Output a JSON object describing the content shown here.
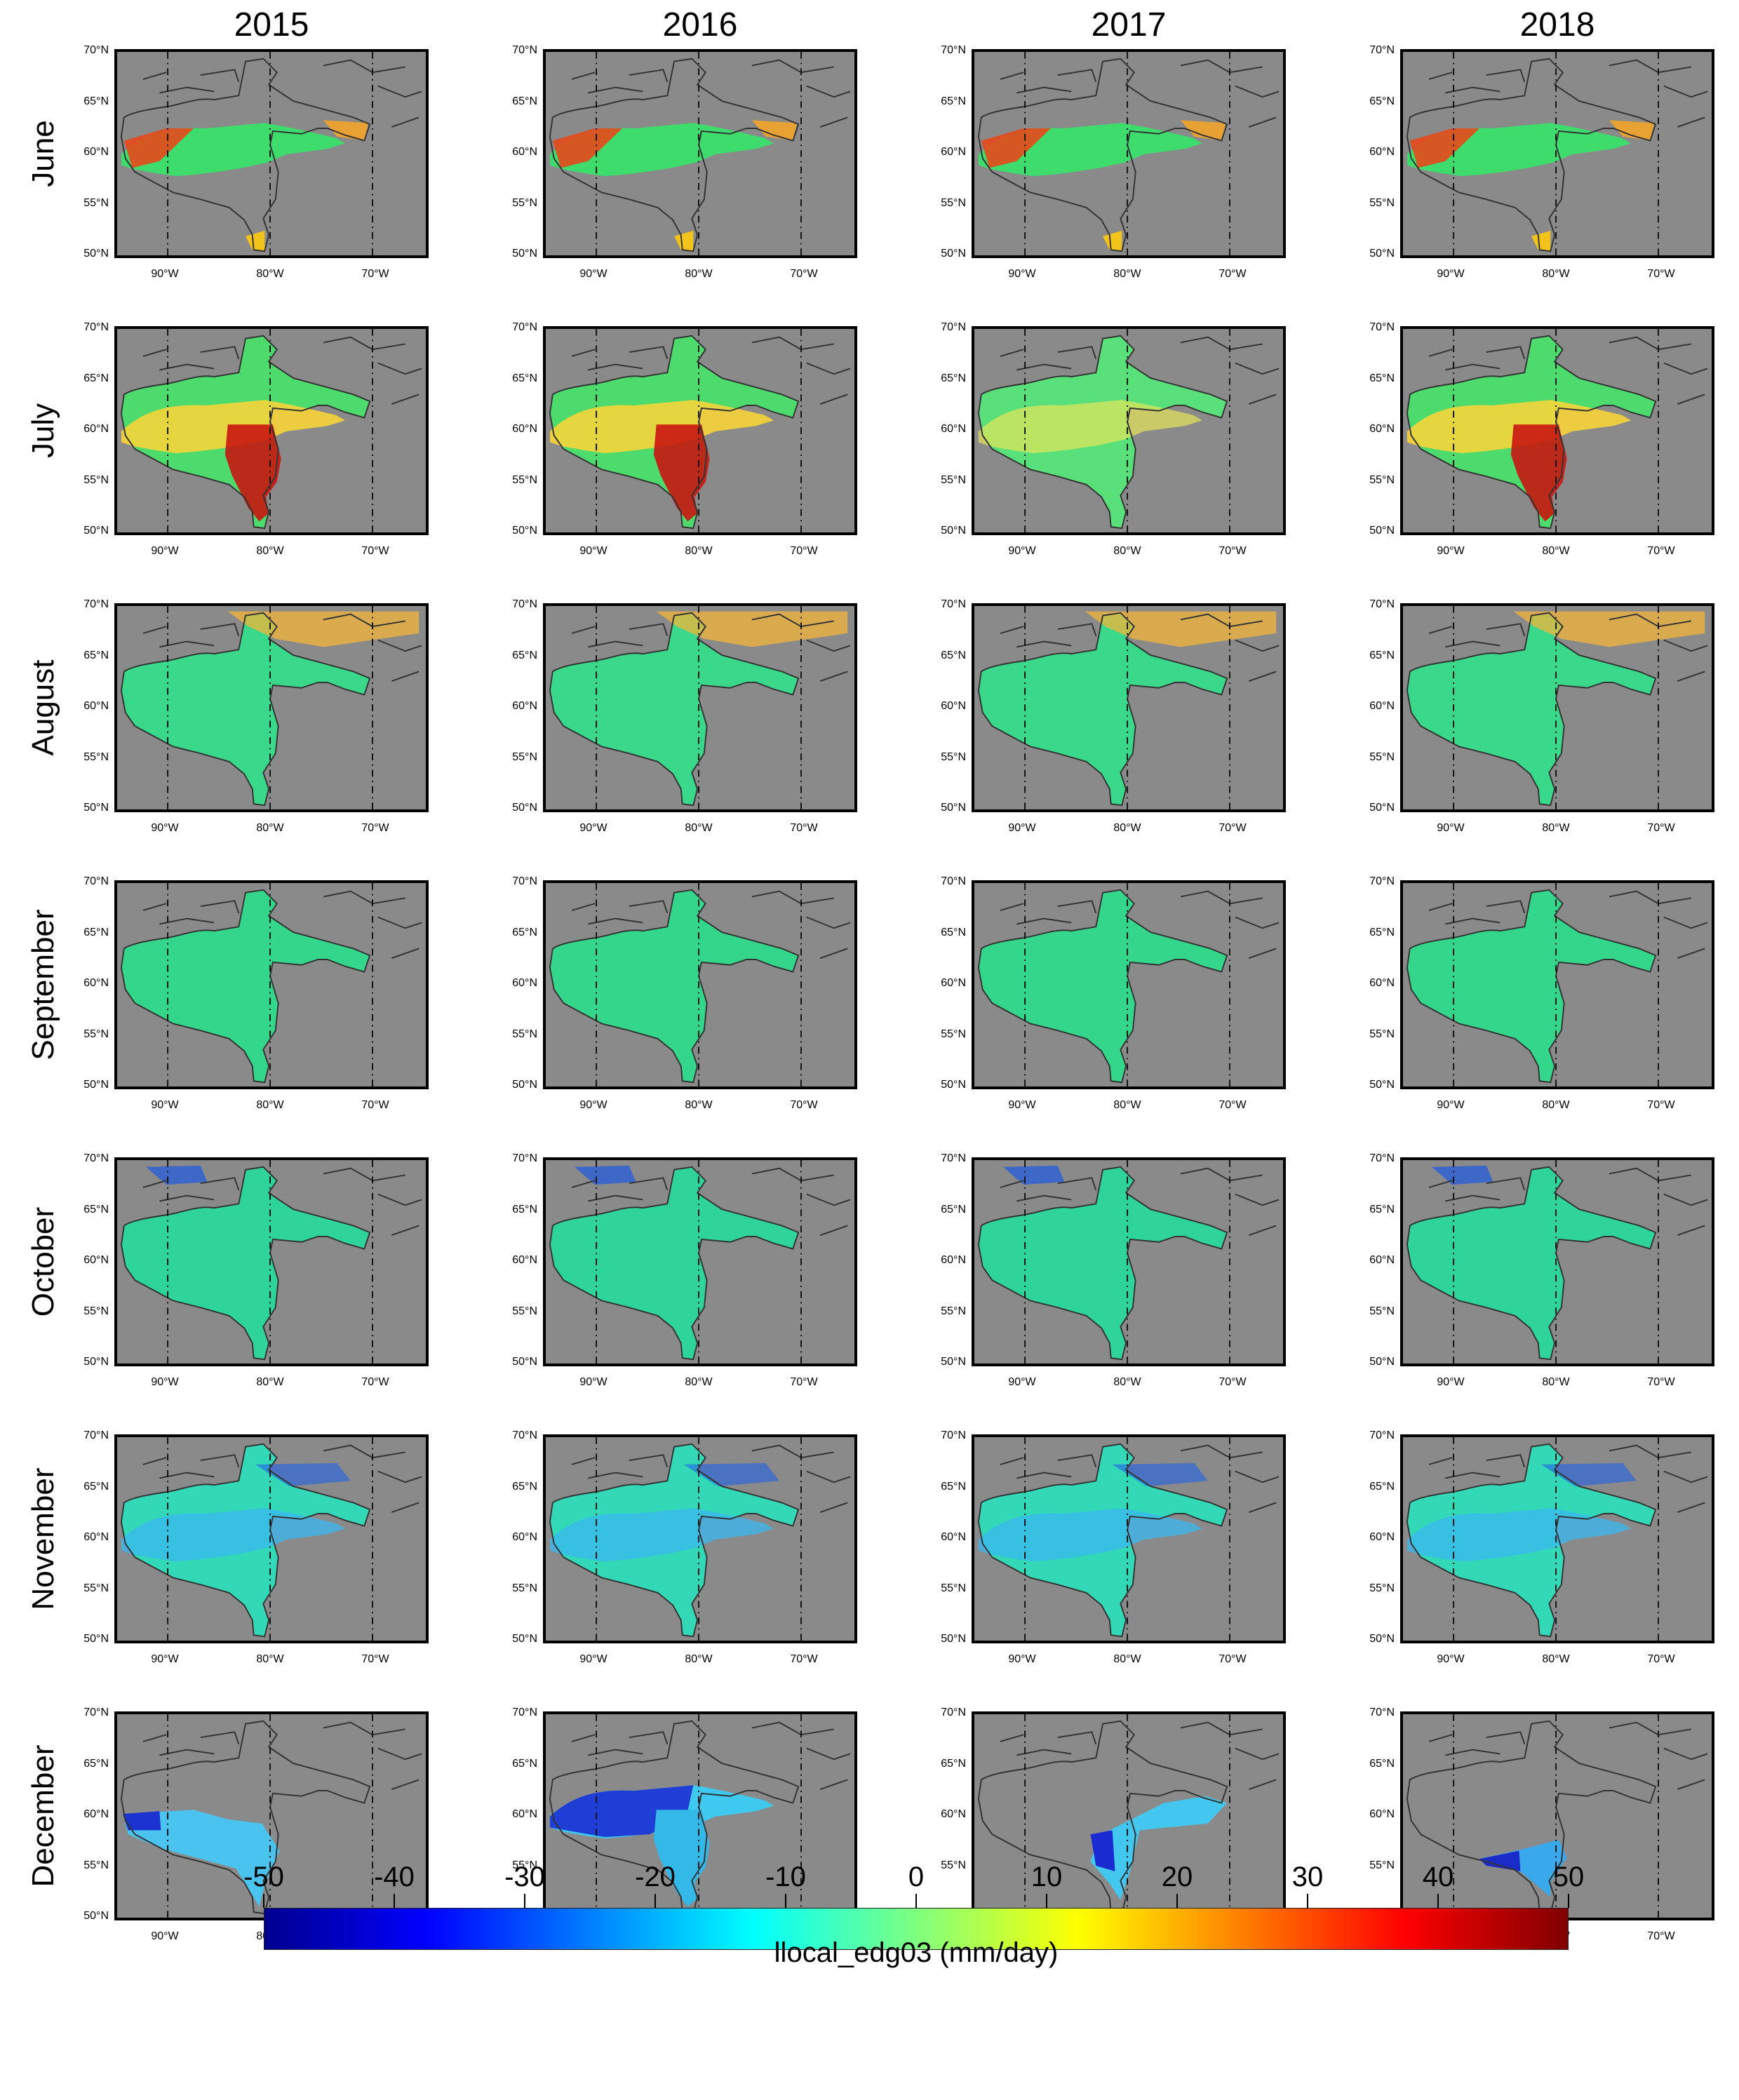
{
  "column_titles": [
    "2015",
    "2016",
    "2017",
    "2018"
  ],
  "row_labels": [
    "June",
    "July",
    "August",
    "September",
    "October",
    "November",
    "December"
  ],
  "latitude_ticks": [
    "70°N",
    "65°N",
    "60°N",
    "55°N",
    "50°N"
  ],
  "longitude_ticks": [
    "90°W",
    "80°W",
    "70°W"
  ],
  "colorbar": {
    "ticks": [
      "-50",
      "-40",
      "-30",
      "-20",
      "-10",
      "0",
      "10",
      "20",
      "30",
      "40",
      "50"
    ],
    "label": "llocal_edg03 (mm/day)",
    "range": [
      -50,
      50
    ],
    "colors": [
      "#00008f",
      "#0000ff",
      "#007fff",
      "#00ffff",
      "#7fff7f",
      "#ffff00",
      "#ff7f00",
      "#ff0000",
      "#7f0000"
    ]
  },
  "map_style": {
    "land_color": "#8a8a8a",
    "coast_color": "#333333"
  },
  "panels": [
    [
      {
        "fill": "partial-warm"
      },
      {
        "fill": "partial-warm"
      },
      {
        "fill": "partial-warm"
      },
      {
        "fill": "partial-warm"
      }
    ],
    [
      {
        "fill": "warm"
      },
      {
        "fill": "warm"
      },
      {
        "fill": "mild-warm"
      },
      {
        "fill": "warm"
      }
    ],
    [
      {
        "fill": "neutral-warm-north"
      },
      {
        "fill": "neutral-warm-north"
      },
      {
        "fill": "neutral-warm-north"
      },
      {
        "fill": "neutral-warm-north"
      }
    ],
    [
      {
        "fill": "neutral"
      },
      {
        "fill": "neutral"
      },
      {
        "fill": "neutral"
      },
      {
        "fill": "neutral"
      }
    ],
    [
      {
        "fill": "neutral-cool"
      },
      {
        "fill": "neutral-cool"
      },
      {
        "fill": "neutral-cool"
      },
      {
        "fill": "neutral-cool"
      }
    ],
    [
      {
        "fill": "cool"
      },
      {
        "fill": "cool"
      },
      {
        "fill": "cool"
      },
      {
        "fill": "cool"
      }
    ],
    [
      {
        "fill": "partial-cold"
      },
      {
        "fill": "cold"
      },
      {
        "fill": "partial-cold-east"
      },
      {
        "fill": "partial-cold-south"
      }
    ]
  ]
}
